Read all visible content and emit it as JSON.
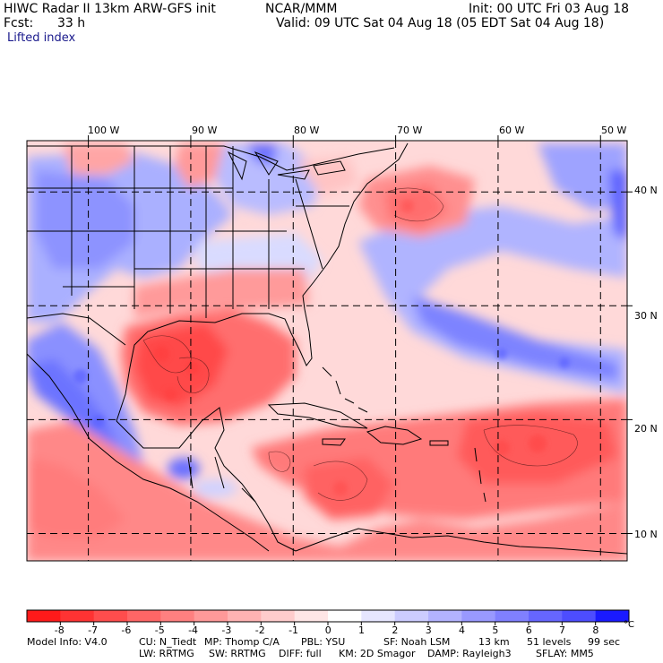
{
  "header": {
    "title_left": "HIWC Radar II 13km ARW-GFS init",
    "source": "NCAR/MMM",
    "init": "Init: 00 UTC Fri 03 Aug 18",
    "fcst_label": "Fcst:",
    "fcst_value": "33 h",
    "valid": "Valid: 09 UTC Sat 04 Aug 18 (05 EDT Sat 04 Aug 18)",
    "field": "Lifted index"
  },
  "map": {
    "lon_labels": [
      "100 W",
      "90 W",
      "80 W",
      "70 W",
      "60 W",
      "50 W"
    ],
    "lat_labels": [
      "40 N",
      "30 N",
      "20 N",
      "10 N"
    ],
    "grid_lon": [
      -100,
      -90,
      -80,
      -70,
      -60,
      -50
    ],
    "grid_lat": [
      40,
      30,
      20,
      10
    ]
  },
  "colorbar": {
    "values": [
      "-8",
      "-7",
      "-6",
      "-5",
      "-4",
      "-3",
      "-2",
      "-1",
      "0",
      "1",
      "2",
      "3",
      "4",
      "5",
      "6",
      "7",
      "8"
    ],
    "unit": "°C",
    "colors": [
      "#ff1a1a",
      "#ff3333",
      "#ff4d4d",
      "#ff6666",
      "#ff8080",
      "#ff9999",
      "#ffb3b3",
      "#ffcccc",
      "#ffe6e6",
      "#ffffff",
      "#e6e6ff",
      "#ccccff",
      "#b3b3ff",
      "#9999ff",
      "#8080ff",
      "#6666ff",
      "#4d4dff",
      "#1a1aff"
    ]
  },
  "footer": {
    "line1": [
      "Model Info: V4.0",
      "CU: N_Tiedt",
      "MP: Thomp C/A",
      "PBL: YSU",
      "SF: Noah LSM",
      "13 km",
      "51 levels",
      "99 sec"
    ],
    "line2": [
      "LW: RRTMG",
      "SW: RRTMG",
      "DIFF: full",
      "KM: 2D Smagor",
      "DAMP: Rayleigh3",
      "SFLAY: MM5"
    ]
  }
}
